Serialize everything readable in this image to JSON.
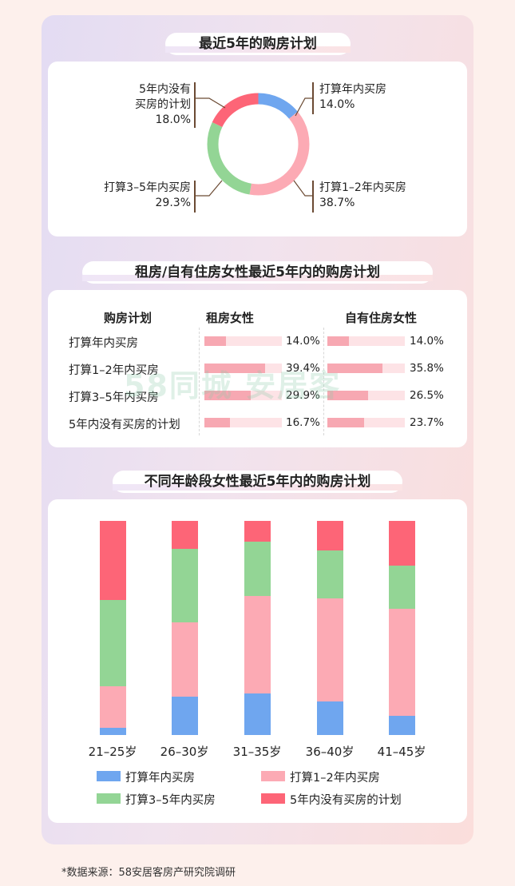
{
  "section1": {
    "title": "最近5年的购房计划",
    "labels": [
      {
        "name": "打算年内买房",
        "pct": "14.0%"
      },
      {
        "name": "打算1–2年内买房",
        "pct": "38.7%"
      },
      {
        "name": "打算3–5年内买房",
        "pct": "29.3%"
      },
      {
        "name_line1": "5年内没有",
        "name_line2": "买房的计划",
        "pct": "18.0%"
      }
    ]
  },
  "section2": {
    "title": "租房/自有住房女性最近5年内的购房计划",
    "headers": {
      "plan": "购房计划",
      "rent": "租房女性",
      "own": "自有住房女性"
    },
    "rows": [
      {
        "label": "打算年内买房",
        "rent": 14.0,
        "rent_text": "14.0%",
        "own": 14.0,
        "own_text": "14.0%"
      },
      {
        "label": "打算1–2年内买房",
        "rent": 39.4,
        "rent_text": "39.4%",
        "own": 35.8,
        "own_text": "35.8%"
      },
      {
        "label": "打算3–5年内买房",
        "rent": 29.9,
        "rent_text": "29.9%",
        "own": 26.5,
        "own_text": "26.5%"
      },
      {
        "label": "5年内没有买房的计划",
        "rent": 16.7,
        "rent_text": "16.7%",
        "own": 23.7,
        "own_text": "23.7%"
      }
    ]
  },
  "section3": {
    "title": "不同年龄段女性最近5年内的购房计划",
    "legend": [
      "打算年内买房",
      "打算1–2年内买房",
      "打算3–5年内买房",
      "5年内没有买房的计划"
    ]
  },
  "colors": {
    "blue": "#6fa6ef",
    "pink": "#fcaab4",
    "green": "#93d595",
    "red": "#fd6577"
  },
  "footer": "*数据来源：58安居客房产研究院调研",
  "watermark": "58同城 安居客",
  "chart_data": [
    {
      "type": "pie",
      "title": "最近5年的购房计划",
      "categories": [
        "打算年内买房",
        "打算1–2年内买房",
        "打算3–5年内买房",
        "5年内没有买房的计划"
      ],
      "values": [
        14.0,
        38.7,
        29.3,
        18.0
      ]
    },
    {
      "type": "bar",
      "title": "租房/自有住房女性最近5年内的购房计划",
      "categories": [
        "打算年内买房",
        "打算1–2年内买房",
        "打算3–5年内买房",
        "5年内没有买房的计划"
      ],
      "series": [
        {
          "name": "租房女性",
          "values": [
            14.0,
            39.4,
            29.9,
            16.7
          ]
        },
        {
          "name": "自有住房女性",
          "values": [
            14.0,
            35.8,
            26.5,
            23.7
          ]
        }
      ]
    },
    {
      "type": "bar",
      "title": "不同年龄段女性最近5年内的购房计划",
      "stacked": true,
      "categories": [
        "21–25岁",
        "26–30岁",
        "31–35岁",
        "36–40岁",
        "41–45岁"
      ],
      "series": [
        {
          "name": "打算年内买房",
          "values": [
            3.5,
            18,
            20,
            16,
            9
          ]
        },
        {
          "name": "打算1–2年内买房",
          "values": [
            20,
            35,
            47,
            49,
            50
          ]
        },
        {
          "name": "打算3–5年内买房",
          "values": [
            41,
            35,
            26,
            23,
            20
          ]
        },
        {
          "name": "5年内没有买房的计划",
          "values": [
            38,
            13,
            10,
            14,
            21
          ]
        }
      ],
      "ylim": [
        0,
        100
      ]
    }
  ]
}
